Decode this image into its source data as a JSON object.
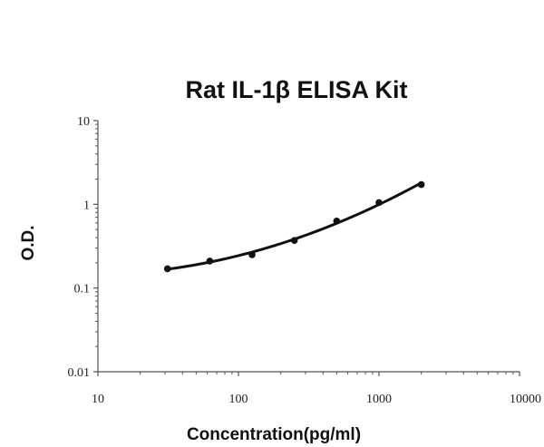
{
  "chart_data": {
    "type": "scatter",
    "title": "Rat IL-1β ELISA Kit",
    "xlabel": "Concentration(pg/ml)",
    "ylabel": "O.D.",
    "xscale": "log",
    "yscale": "log",
    "xlim": [
      10,
      10000
    ],
    "ylim": [
      0.01,
      10
    ],
    "x_ticks": [
      "10",
      "100",
      "1000",
      "10000"
    ],
    "y_ticks": [
      "0.01",
      "0.1",
      "1",
      "10"
    ],
    "grid": false,
    "legend": "none",
    "series": [
      {
        "x": [
          31.25,
          62.5,
          125,
          250,
          500,
          1000,
          2000
        ],
        "y": [
          0.17,
          0.21,
          0.25,
          0.37,
          0.63,
          1.05,
          1.72
        ],
        "fit_line": true
      }
    ],
    "colors": {
      "line": "#111111",
      "points": "#111111",
      "axis": "#555555"
    }
  }
}
